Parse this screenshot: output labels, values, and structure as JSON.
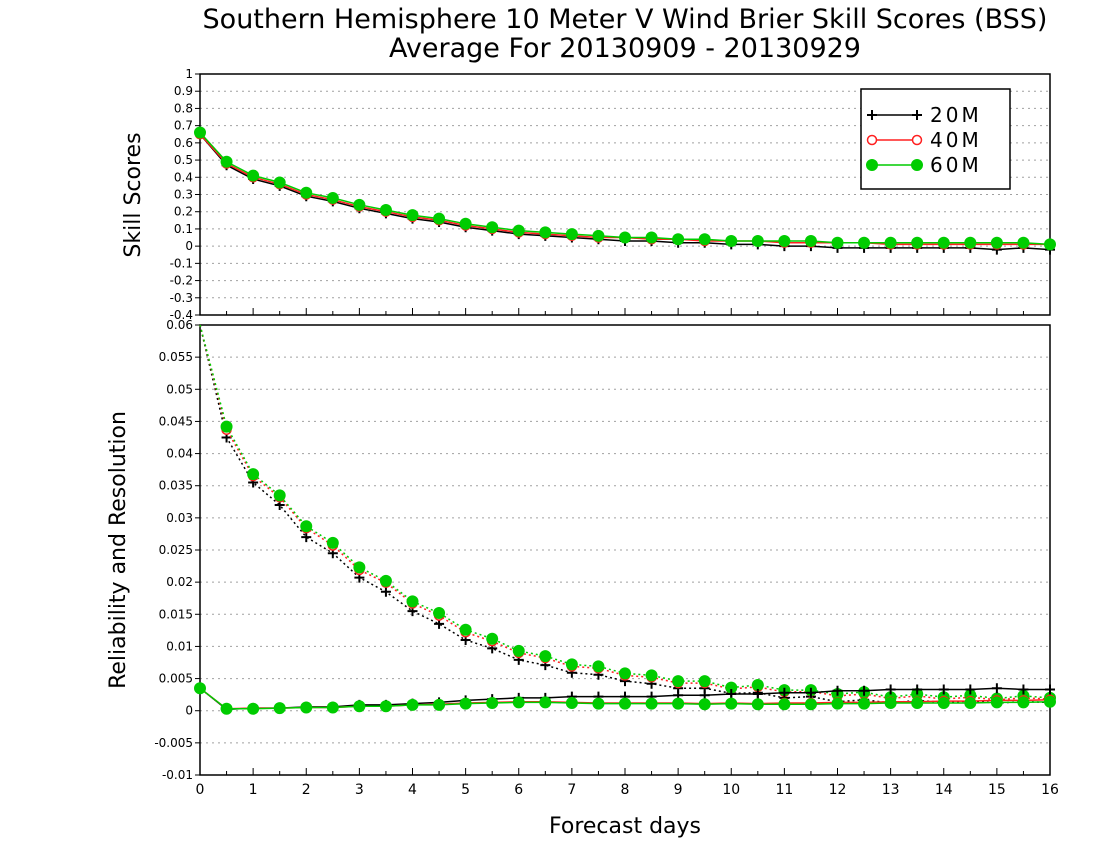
{
  "chart_data": {
    "type": "line",
    "title": "Southern Hemisphere 10 Meter V Wind Brier Skill Scores (BSS)",
    "subtitle": "Average For 20130909 - 20130929",
    "xlabel": "Forecast days",
    "x": [
      0,
      0.5,
      1,
      1.5,
      2,
      2.5,
      3,
      3.5,
      4,
      4.5,
      5,
      5.5,
      6,
      6.5,
      7,
      7.5,
      8,
      8.5,
      9,
      9.5,
      10,
      10.5,
      11,
      11.5,
      12,
      12.5,
      13,
      13.5,
      14,
      14.5,
      15,
      15.5,
      16
    ],
    "xlim": [
      0,
      16
    ],
    "xticks": [
      "0",
      "1",
      "2",
      "3",
      "4",
      "5",
      "6",
      "7",
      "8",
      "9",
      "10",
      "11",
      "12",
      "13",
      "14",
      "15",
      "16"
    ],
    "legend_position": "top-right",
    "legend": [
      {
        "name": "20M",
        "color": "#000000",
        "marker": "plus"
      },
      {
        "name": "40M",
        "color": "#ff2020",
        "marker": "open-circle"
      },
      {
        "name": "60M",
        "color": "#00cc00",
        "marker": "filled-circle"
      }
    ],
    "panels": [
      {
        "ylabel": "Skill Scores",
        "ylim": [
          -0.4,
          1
        ],
        "yticks": [
          "1",
          "0.9",
          "0.8",
          "0.7",
          "0.6",
          "0.5",
          "0.4",
          "0.3",
          "0.2",
          "0.1",
          "0",
          "-0.1",
          "-0.2",
          "-0.3",
          "-0.4"
        ],
        "grid": "horizontal-dotted",
        "series": [
          {
            "name": "20M",
            "style": "solid",
            "values": [
              0.65,
              0.47,
              0.39,
              0.35,
              0.29,
              0.26,
              0.22,
              0.19,
              0.16,
              0.14,
              0.11,
              0.09,
              0.07,
              0.06,
              0.05,
              0.04,
              0.03,
              0.03,
              0.02,
              0.02,
              0.01,
              0.01,
              0.0,
              0.0,
              -0.01,
              -0.01,
              -0.01,
              -0.01,
              -0.01,
              -0.01,
              -0.02,
              -0.01,
              -0.02
            ]
          },
          {
            "name": "40M",
            "style": "solid",
            "values": [
              0.65,
              0.48,
              0.4,
              0.36,
              0.3,
              0.27,
              0.23,
              0.2,
              0.17,
              0.15,
              0.12,
              0.1,
              0.08,
              0.07,
              0.06,
              0.05,
              0.05,
              0.04,
              0.04,
              0.03,
              0.03,
              0.03,
              0.02,
              0.02,
              0.02,
              0.02,
              0.01,
              0.01,
              0.01,
              0.01,
              0.01,
              0.01,
              0.01
            ]
          },
          {
            "name": "60M",
            "style": "solid",
            "values": [
              0.66,
              0.49,
              0.41,
              0.37,
              0.31,
              0.28,
              0.24,
              0.21,
              0.18,
              0.16,
              0.13,
              0.11,
              0.09,
              0.08,
              0.07,
              0.06,
              0.05,
              0.05,
              0.04,
              0.04,
              0.03,
              0.03,
              0.03,
              0.03,
              0.02,
              0.02,
              0.02,
              0.02,
              0.02,
              0.02,
              0.02,
              0.02,
              0.01
            ]
          }
        ]
      },
      {
        "ylabel": "Reliability and Resolution",
        "ylim": [
          -0.01,
          0.06
        ],
        "yticks": [
          "0.06",
          "0.055",
          "0.05",
          "0.045",
          "0.04",
          "0.035",
          "0.03",
          "0.025",
          "0.02",
          "0.015",
          "0.01",
          "0.005",
          "0",
          "-0.005",
          "-0.01"
        ],
        "grid": "horizontal-dotted",
        "series": [
          {
            "name": "20M Resolution",
            "style": "dotted",
            "values": [
              0.06,
              0.0425,
              0.0355,
              0.032,
              0.027,
              0.0245,
              0.0207,
              0.0185,
              0.0155,
              0.0135,
              0.011,
              0.0097,
              0.0079,
              0.0071,
              0.0059,
              0.0056,
              0.0046,
              0.0042,
              0.0035,
              0.0035,
              0.0027,
              0.0028,
              0.002,
              0.0022,
              0.0014,
              0.0017,
              0.0012,
              0.0016,
              0.0013,
              0.0015,
              0.0012,
              0.0014,
              0.0013
            ]
          },
          {
            "name": "40M Resolution",
            "style": "dotted",
            "values": [
              0.06,
              0.0437,
              0.0365,
              0.0332,
              0.0284,
              0.0257,
              0.0219,
              0.0199,
              0.0167,
              0.0148,
              0.0122,
              0.0108,
              0.009,
              0.0082,
              0.0069,
              0.0066,
              0.0055,
              0.0052,
              0.0043,
              0.0043,
              0.0034,
              0.0037,
              0.0029,
              0.003,
              0.0023,
              0.0026,
              0.0019,
              0.0023,
              0.0018,
              0.0021,
              0.0017,
              0.002,
              0.0018
            ]
          },
          {
            "name": "60M Resolution",
            "style": "dotted",
            "values": [
              0.06,
              0.0442,
              0.0368,
              0.0335,
              0.0287,
              0.0261,
              0.0223,
              0.0202,
              0.017,
              0.0152,
              0.0126,
              0.0112,
              0.0093,
              0.0085,
              0.0072,
              0.0069,
              0.0058,
              0.0055,
              0.0046,
              0.0046,
              0.0036,
              0.004,
              0.0032,
              0.0032,
              0.0026,
              0.0029,
              0.0021,
              0.0026,
              0.0021,
              0.0024,
              0.0019,
              0.0023,
              0.002
            ]
          },
          {
            "name": "20M Reliability",
            "style": "solid",
            "values": [
              0.0035,
              0.0002,
              0.0004,
              0.0004,
              0.0006,
              0.0006,
              0.0009,
              0.0009,
              0.0011,
              0.0013,
              0.0016,
              0.0018,
              0.002,
              0.002,
              0.0022,
              0.0022,
              0.0022,
              0.0022,
              0.0024,
              0.0024,
              0.0026,
              0.0026,
              0.0028,
              0.0028,
              0.0031,
              0.0031,
              0.0033,
              0.0033,
              0.0033,
              0.0033,
              0.0035,
              0.0033,
              0.0033
            ]
          },
          {
            "name": "40M Reliability",
            "style": "solid",
            "values": [
              0.0035,
              0.0003,
              0.0004,
              0.0004,
              0.0005,
              0.0005,
              0.0007,
              0.0007,
              0.0009,
              0.001,
              0.0012,
              0.0013,
              0.0014,
              0.0014,
              0.0013,
              0.0012,
              0.0012,
              0.0012,
              0.0012,
              0.0011,
              0.0012,
              0.0011,
              0.0012,
              0.0012,
              0.0013,
              0.0013,
              0.0014,
              0.0014,
              0.0015,
              0.0015,
              0.0016,
              0.0016,
              0.0017
            ]
          },
          {
            "name": "60M Reliability",
            "style": "solid",
            "values": [
              0.0035,
              0.0003,
              0.0003,
              0.0004,
              0.0005,
              0.0005,
              0.0007,
              0.0007,
              0.0009,
              0.0009,
              0.0011,
              0.0012,
              0.0013,
              0.0013,
              0.0012,
              0.0011,
              0.0011,
              0.0011,
              0.0011,
              0.001,
              0.0011,
              0.001,
              0.001,
              0.001,
              0.0011,
              0.0011,
              0.0012,
              0.0012,
              0.0012,
              0.0012,
              0.0013,
              0.0013,
              0.0014
            ]
          }
        ]
      }
    ]
  }
}
